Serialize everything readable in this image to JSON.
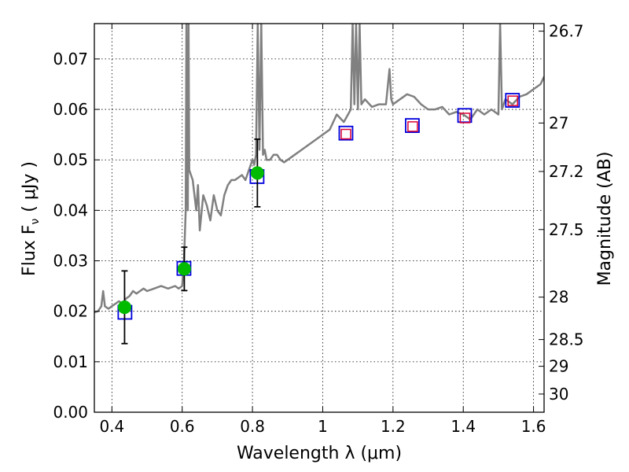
{
  "chart_data": {
    "type": "line",
    "xlabel": "Wavelength  λ (μm)",
    "ylabel": "Flux  F",
    "ylabel_sub": "ν",
    "ylabel_unit": "( μJy )",
    "ylabel_right": "Magnitude (AB)",
    "xlim": [
      0.35,
      1.63
    ],
    "ylim": [
      0.0,
      0.077
    ],
    "x_ticks": [
      0.4,
      0.6,
      0.8,
      1.0,
      1.2,
      1.4,
      1.6
    ],
    "x_tick_labels": [
      "0.4",
      "0.6",
      "0.8",
      "1",
      "1.2",
      "1.4",
      "1.6"
    ],
    "y_ticks": [
      0.0,
      0.01,
      0.02,
      0.03,
      0.04,
      0.05,
      0.06,
      0.07
    ],
    "y_tick_labels": [
      "0.00",
      "0.01",
      "0.02",
      "0.03",
      "0.04",
      "0.05",
      "0.06",
      "0.07"
    ],
    "right_ticks": [
      {
        "label": "26.7",
        "flux": 0.0755
      },
      {
        "label": "27",
        "flux": 0.0573
      },
      {
        "label": "27.2",
        "flux": 0.0477
      },
      {
        "label": "27.5",
        "flux": 0.0362
      },
      {
        "label": "28",
        "flux": 0.0228
      },
      {
        "label": "28.5",
        "flux": 0.0144
      },
      {
        "label": "29",
        "flux": 0.0091
      },
      {
        "label": "30",
        "flux": 0.0036
      }
    ],
    "grid": true,
    "colors": {
      "model": "#808080",
      "observed": "#00bb00",
      "model_band": "#0000dd",
      "predicted": "#dd0033",
      "errorbar": "#000000"
    },
    "series": [
      {
        "type": "line",
        "x": [
          0.35,
          0.36,
          0.37,
          0.375,
          0.38,
          0.39,
          0.4,
          0.41,
          0.42,
          0.43,
          0.44,
          0.45,
          0.46,
          0.47,
          0.48,
          0.49,
          0.5,
          0.52,
          0.54,
          0.56,
          0.58,
          0.59,
          0.6,
          0.605,
          0.61,
          0.612,
          0.614,
          0.616,
          0.618,
          0.62,
          0.63,
          0.64,
          0.645,
          0.65,
          0.66,
          0.67,
          0.68,
          0.69,
          0.7,
          0.71,
          0.72,
          0.73,
          0.74,
          0.75,
          0.76,
          0.77,
          0.78,
          0.79,
          0.8,
          0.805,
          0.81,
          0.815,
          0.82,
          0.825,
          0.83,
          0.835,
          0.84,
          0.85,
          0.86,
          0.87,
          0.88,
          0.89,
          0.9,
          0.92,
          0.94,
          0.96,
          0.98,
          1.0,
          1.02,
          1.04,
          1.06,
          1.08,
          1.085,
          1.09,
          1.095,
          1.1,
          1.105,
          1.11,
          1.12,
          1.14,
          1.16,
          1.18,
          1.19,
          1.195,
          1.2,
          1.22,
          1.24,
          1.26,
          1.28,
          1.3,
          1.32,
          1.34,
          1.36,
          1.38,
          1.4,
          1.42,
          1.44,
          1.46,
          1.48,
          1.5,
          1.505,
          1.51,
          1.515,
          1.52,
          1.54,
          1.56,
          1.58,
          1.6,
          1.62,
          1.63
        ],
        "y": [
          0.0198,
          0.02,
          0.021,
          0.024,
          0.021,
          0.0205,
          0.021,
          0.0215,
          0.022,
          0.0215,
          0.0225,
          0.023,
          0.024,
          0.0235,
          0.024,
          0.0245,
          0.024,
          0.0245,
          0.025,
          0.0245,
          0.025,
          0.0245,
          0.025,
          0.03,
          0.04,
          0.077,
          0.045,
          0.04,
          0.077,
          0.048,
          0.046,
          0.04,
          0.045,
          0.036,
          0.043,
          0.041,
          0.038,
          0.043,
          0.04,
          0.039,
          0.043,
          0.045,
          0.046,
          0.046,
          0.0465,
          0.047,
          0.046,
          0.048,
          0.05,
          0.049,
          0.051,
          0.077,
          0.052,
          0.077,
          0.051,
          0.052,
          0.05,
          0.05,
          0.051,
          0.051,
          0.05,
          0.0495,
          0.05,
          0.051,
          0.052,
          0.053,
          0.054,
          0.055,
          0.056,
          0.059,
          0.0575,
          0.06,
          0.077,
          0.061,
          0.077,
          0.06,
          0.077,
          0.061,
          0.062,
          0.0605,
          0.061,
          0.061,
          0.068,
          0.062,
          0.061,
          0.062,
          0.063,
          0.0625,
          0.061,
          0.06,
          0.06,
          0.0605,
          0.059,
          0.0595,
          0.059,
          0.058,
          0.06,
          0.059,
          0.06,
          0.059,
          0.077,
          0.06,
          0.061,
          0.062,
          0.061,
          0.0625,
          0.063,
          0.064,
          0.065,
          0.0665
        ]
      },
      {
        "type": "markers_square",
        "x": [
          0.437,
          0.605,
          0.813,
          1.066,
          1.255,
          1.404,
          1.54
        ],
        "y": [
          0.0198,
          0.0285,
          0.0467,
          0.0553,
          0.0568,
          0.0588,
          0.0618
        ]
      },
      {
        "type": "markers_circle",
        "x": [
          0.436,
          0.606,
          0.814
        ],
        "y": [
          0.0208,
          0.0284,
          0.0474
        ],
        "yerr": [
          0.0072,
          0.0043,
          0.0067
        ]
      },
      {
        "type": "markers_square_small",
        "x": [
          1.066,
          1.256,
          1.405,
          1.541
        ],
        "y": [
          0.0551,
          0.0566,
          0.0583,
          0.0617
        ]
      }
    ]
  }
}
